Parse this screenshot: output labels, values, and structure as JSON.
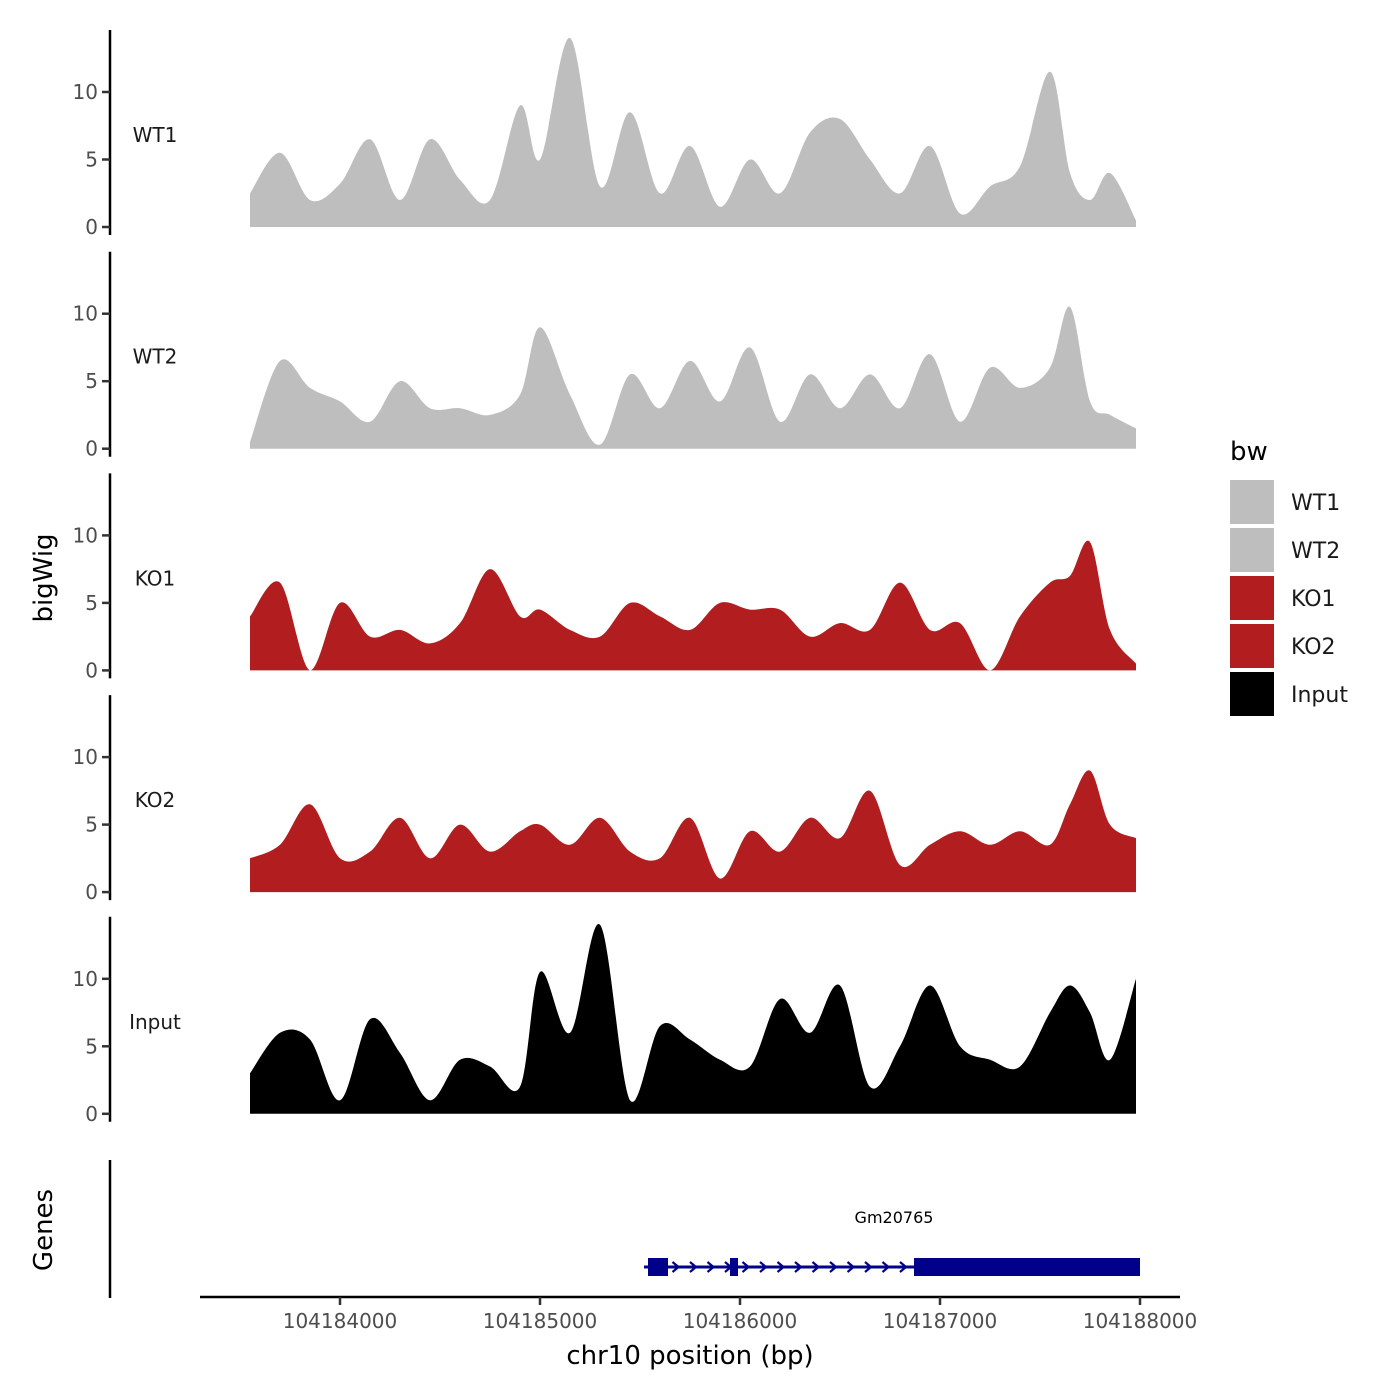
{
  "chart_data": {
    "type": "area",
    "title": "",
    "ylabel": "bigWig",
    "xlabel": "chr10 position (bp)",
    "ylim": [
      0,
      14
    ],
    "yticks": [
      0,
      5,
      10
    ],
    "xlim": [
      104183300,
      104188200
    ],
    "xticks": [
      104184000,
      104185000,
      104186000,
      104187000,
      104188000
    ],
    "x": [
      104183550,
      104183700,
      104183850,
      104184000,
      104184150,
      104184300,
      104184450,
      104184600,
      104184750,
      104184900,
      104185000,
      104185150,
      104185300,
      104185450,
      104185600,
      104185750,
      104185900,
      104186050,
      104186200,
      104186350,
      104186500,
      104186650,
      104186800,
      104186950,
      104187100,
      104187250,
      104187400,
      104187550,
      104187650,
      104187750,
      104187850,
      104187980
    ],
    "legend": {
      "title": "bw",
      "entries": [
        {
          "label": "WT1",
          "color": "#bebebe"
        },
        {
          "label": "WT2",
          "color": "#bebebe"
        },
        {
          "label": "KO1",
          "color": "#b21e1f"
        },
        {
          "label": "KO2",
          "color": "#b21e1f"
        },
        {
          "label": "Input",
          "color": "#000000"
        }
      ]
    },
    "series": [
      {
        "name": "WT1",
        "color": "#bebebe",
        "values": [
          2.5,
          5.5,
          2.0,
          3.2,
          6.5,
          2.0,
          6.5,
          3.5,
          2.0,
          9.0,
          5.0,
          14.0,
          3.0,
          8.5,
          2.5,
          6.0,
          1.5,
          5.0,
          2.5,
          7.0,
          8.0,
          5.0,
          2.5,
          6.0,
          1.0,
          3.0,
          4.5,
          11.5,
          4.0,
          2.0,
          4.0,
          0.5
        ]
      },
      {
        "name": "WT2",
        "color": "#bebebe",
        "values": [
          0.5,
          6.5,
          4.5,
          3.5,
          2.0,
          5.0,
          3.0,
          3.0,
          2.5,
          4.0,
          9.0,
          4.0,
          0.3,
          5.5,
          3.0,
          6.5,
          3.5,
          7.5,
          2.0,
          5.5,
          3.0,
          5.5,
          3.0,
          7.0,
          2.0,
          6.0,
          4.5,
          6.0,
          10.5,
          3.5,
          2.5,
          1.5
        ]
      },
      {
        "name": "KO1",
        "color": "#b21e1f",
        "values": [
          4.0,
          6.5,
          0.0,
          5.0,
          2.5,
          3.0,
          2.0,
          3.5,
          7.5,
          4.0,
          4.5,
          3.0,
          2.5,
          5.0,
          4.0,
          3.0,
          5.0,
          4.5,
          4.5,
          2.5,
          3.5,
          3.0,
          6.5,
          3.0,
          3.5,
          0.0,
          4.0,
          6.5,
          7.0,
          9.5,
          3.0,
          0.5
        ]
      },
      {
        "name": "KO2",
        "color": "#b21e1f",
        "values": [
          2.5,
          3.5,
          6.5,
          2.5,
          3.0,
          5.5,
          2.5,
          5.0,
          3.0,
          4.5,
          5.0,
          3.5,
          5.5,
          3.0,
          2.5,
          5.5,
          1.0,
          4.5,
          3.0,
          5.5,
          4.0,
          7.5,
          2.0,
          3.5,
          4.5,
          3.5,
          4.5,
          3.5,
          6.5,
          9.0,
          5.0,
          4.0
        ]
      },
      {
        "name": "Input",
        "color": "#000000",
        "values": [
          3.0,
          6.0,
          5.5,
          1.0,
          7.0,
          4.5,
          1.0,
          4.0,
          3.5,
          2.0,
          10.5,
          6.0,
          14.0,
          1.0,
          6.5,
          5.5,
          4.0,
          3.5,
          8.5,
          6.0,
          9.5,
          2.0,
          5.0,
          9.5,
          5.0,
          4.0,
          3.5,
          7.5,
          9.5,
          7.5,
          4.0,
          10.0
        ]
      }
    ],
    "genes": {
      "label": "Genes",
      "color": "#00008b",
      "items": [
        {
          "name": "Gm20765",
          "start": 104185520,
          "end": 104188000,
          "strand": "+",
          "exons": [
            [
              104185540,
              104185640
            ],
            [
              104185950,
              104185990
            ],
            [
              104186870,
              104187670
            ]
          ],
          "utr": [
            [
              104187670,
              104188000
            ]
          ]
        }
      ]
    }
  }
}
